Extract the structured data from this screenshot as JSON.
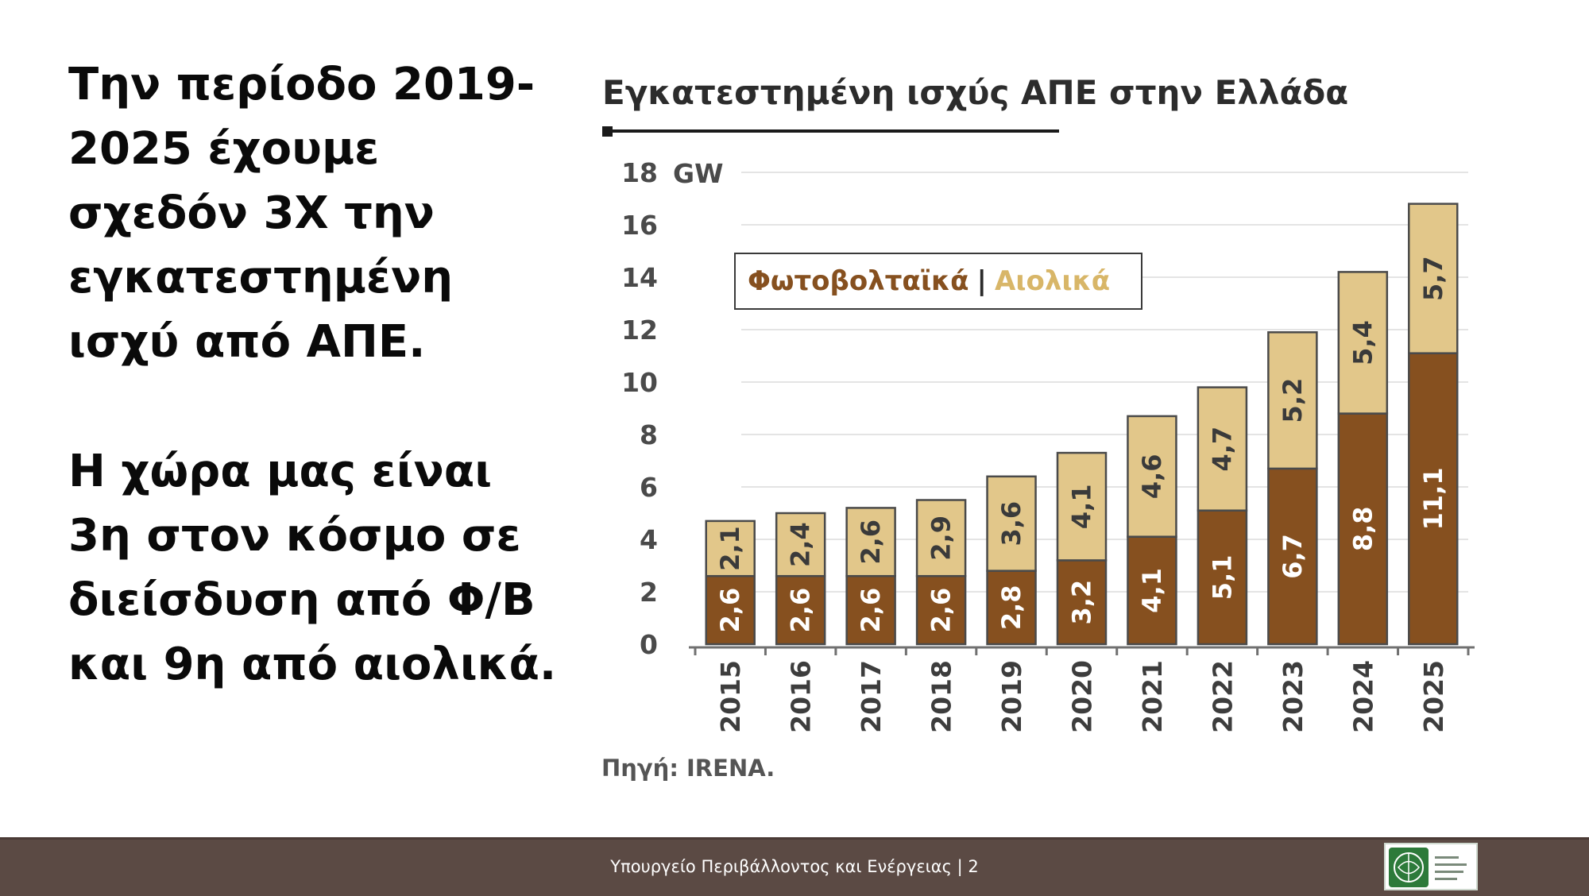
{
  "text_block": {
    "paragraph_1": "Την περίοδο 2019-2025 έχουμε σχεδόν 3Χ την εγκατεστημένη ισχύ από ΑΠΕ.",
    "paragraph_2": "Η χώρα μας είναι 3η στον κόσμο σε διείσδυση από Φ/Β και 9η από αιολικά."
  },
  "chart_data": {
    "type": "bar",
    "stacked": true,
    "title": "Εγκατεστημένη ισχύς ΑΠΕ στην Ελλάδα",
    "unit": "GW",
    "ylim": [
      0,
      18
    ],
    "yticks": [
      0,
      2,
      4,
      6,
      8,
      10,
      12,
      14,
      16,
      18
    ],
    "grid": true,
    "legend_position": "top-left",
    "categories": [
      "2015",
      "2016",
      "2017",
      "2018",
      "2019",
      "2020",
      "2021",
      "2022",
      "2023",
      "2024",
      "2025"
    ],
    "series": [
      {
        "name": "Φωτοβολταϊκά",
        "color": "#86501f",
        "values": [
          2.6,
          2.6,
          2.6,
          2.6,
          2.8,
          3.2,
          4.1,
          5.1,
          6.7,
          8.8,
          11.1
        ],
        "labels": [
          "2,6",
          "2,6",
          "2,6",
          "2,6",
          "2,8",
          "3,2",
          "4,1",
          "5,1",
          "6,7",
          "8,8",
          "11,1"
        ]
      },
      {
        "name": "Αιολικά",
        "color": "#e2c78a",
        "values": [
          2.1,
          2.4,
          2.6,
          2.9,
          3.6,
          4.1,
          4.6,
          4.7,
          5.2,
          5.4,
          5.7
        ],
        "labels": [
          "2,1",
          "2,4",
          "2,6",
          "2,9",
          "3,6",
          "4,1",
          "4,6",
          "4,7",
          "5,2",
          "5,4",
          "5,7"
        ]
      }
    ],
    "legend_separator": "|",
    "source": "Πηγή: IRENA."
  },
  "footer": {
    "text": "Υπουργείο Περιβάλλοντος και Ενέργειας | 2",
    "background": "#5b4a44"
  },
  "logo": {
    "icon": "ministry-logo-icon"
  }
}
